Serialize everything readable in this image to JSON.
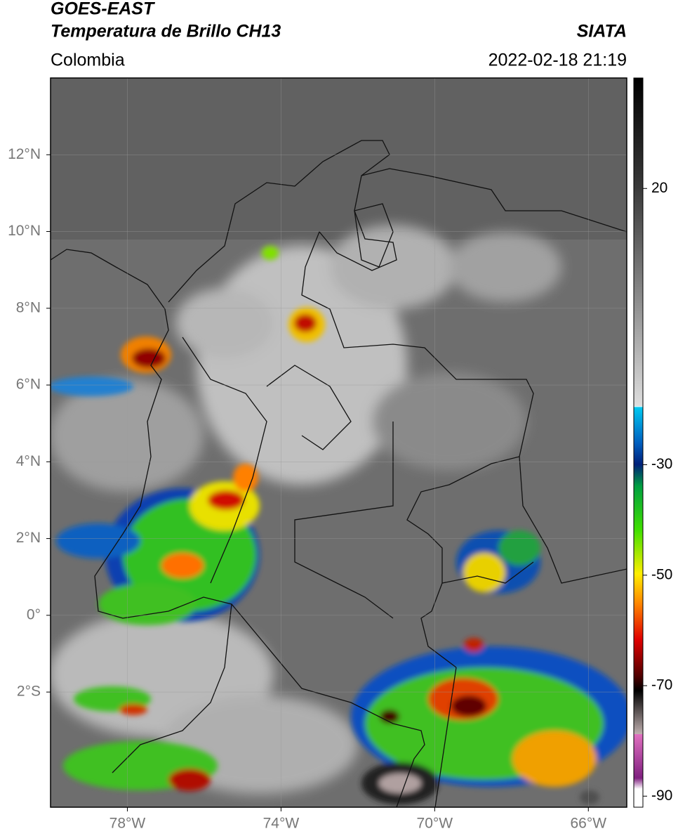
{
  "header": {
    "title": "GOES-EAST",
    "subtitle": "Temperatura de Brillo CH13",
    "region": "Colombia",
    "source": "SIATA",
    "timestamp": "2022-02-18 21:19"
  },
  "map": {
    "lonlim": [
      -80,
      -65
    ],
    "latlim": [
      -5,
      14
    ],
    "lon_ticks": [
      {
        "value": -78,
        "label": "78°W"
      },
      {
        "value": -74,
        "label": "74°W"
      },
      {
        "value": -70,
        "label": "70°W"
      },
      {
        "value": -66,
        "label": "66°W"
      }
    ],
    "lat_ticks": [
      {
        "value": 12,
        "label": "12°N"
      },
      {
        "value": 10,
        "label": "10°N"
      },
      {
        "value": 8,
        "label": "8°N"
      },
      {
        "value": 6,
        "label": "6°N"
      },
      {
        "value": 4,
        "label": "4°N"
      },
      {
        "value": 2,
        "label": "2°N"
      },
      {
        "value": 0,
        "label": "0°"
      },
      {
        "value": -2,
        "label": "2°S"
      }
    ]
  },
  "colorbar": {
    "lim": [
      -92,
      40
    ],
    "ticks": [
      20,
      -30,
      -50,
      -70,
      -90
    ]
  }
}
